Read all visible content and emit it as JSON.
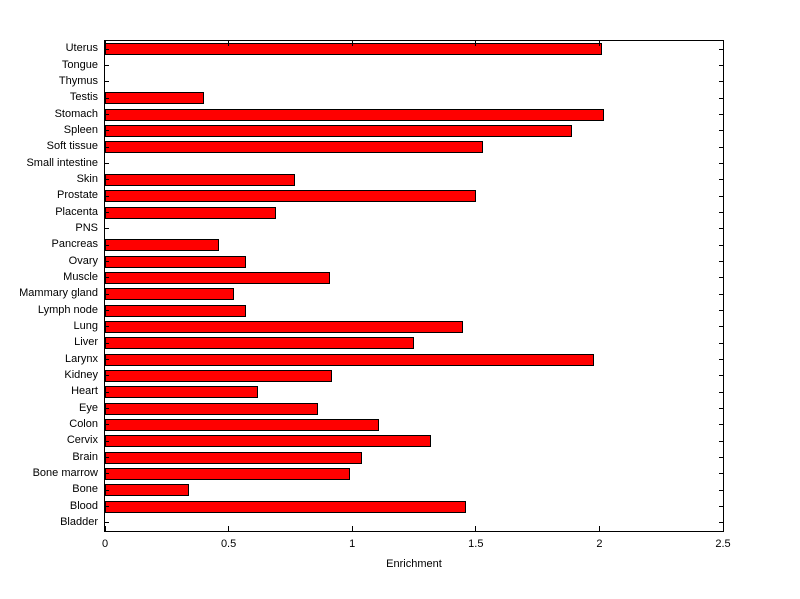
{
  "chart_data": {
    "type": "bar",
    "orientation": "horizontal",
    "title": "",
    "xlabel": "Enrichment",
    "ylabel": "",
    "xlim": [
      0,
      2.5
    ],
    "xticks": [
      0,
      0.5,
      1,
      1.5,
      2,
      2.5
    ],
    "xtick_labels": [
      "0",
      "0.5",
      "1",
      "1.5",
      "2",
      "2.5"
    ],
    "grid": false,
    "legend": "none",
    "bar_color": "#ff0000",
    "bar_edge_color": "#000000",
    "categories": [
      "Uterus",
      "Tongue",
      "Thymus",
      "Testis",
      "Stomach",
      "Spleen",
      "Soft tissue",
      "Small intestine",
      "Skin",
      "Prostate",
      "Placenta",
      "PNS",
      "Pancreas",
      "Ovary",
      "Muscle",
      "Mammary gland",
      "Lymph node",
      "Lung",
      "Liver",
      "Larynx",
      "Kidney",
      "Heart",
      "Eye",
      "Colon",
      "Cervix",
      "Brain",
      "Bone marrow",
      "Bone",
      "Blood",
      "Bladder"
    ],
    "values": [
      2.01,
      0,
      0,
      0.4,
      2.02,
      1.89,
      1.53,
      0,
      0.77,
      1.5,
      0.69,
      0,
      0.46,
      0.57,
      0.91,
      0.52,
      0.57,
      1.45,
      1.25,
      1.98,
      0.92,
      0.62,
      0.86,
      1.11,
      1.32,
      1.04,
      0.99,
      0.34,
      1.46,
      0
    ]
  }
}
